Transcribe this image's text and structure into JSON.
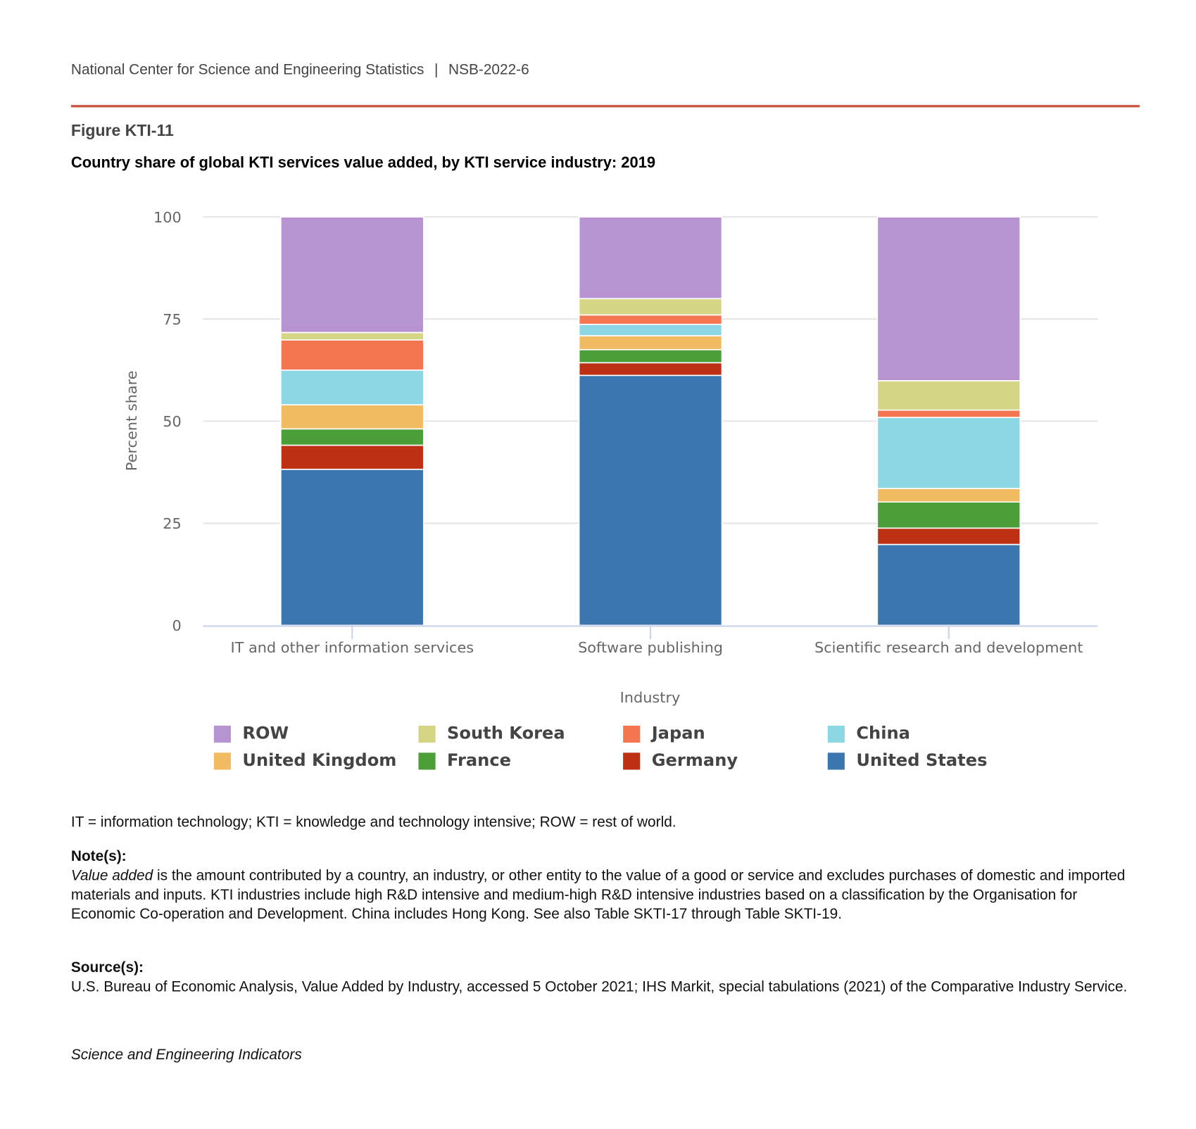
{
  "header": {
    "org": "National Center for Science and Engineering Statistics",
    "sep": "|",
    "report": "NSB-2022-6"
  },
  "figure_label": "Figure KTI-11",
  "colors": {
    "rule": "#c8523a",
    "ROW": "#b893d1",
    "South Korea": "#d4d585",
    "Japan": "#f47650",
    "China": "#8bd7e4",
    "United Kingdom": "#f1ba63",
    "France": "#4b9e38",
    "Germany": "#bd3014",
    "United States": "#3b76af"
  },
  "chart_data": {
    "type": "bar",
    "stacked": true,
    "title": "Country share of global KTI services value added, by KTI service industry: 2019",
    "xlabel": "Industry",
    "ylabel": "Percent share",
    "ylim": [
      0,
      100
    ],
    "yticks": [
      "0",
      "25",
      "50",
      "75",
      "100"
    ],
    "grid": true,
    "legend_position": "bottom",
    "categories": [
      "IT and other information services",
      "Software publishing",
      "Scientific research and development"
    ],
    "series": [
      {
        "name": "United States",
        "values": [
          38.2,
          61.2,
          19.8
        ]
      },
      {
        "name": "Germany",
        "values": [
          5.9,
          3.1,
          4.0
        ]
      },
      {
        "name": "France",
        "values": [
          4.0,
          3.2,
          6.4
        ]
      },
      {
        "name": "United Kingdom",
        "values": [
          5.9,
          3.4,
          3.3
        ]
      },
      {
        "name": "China",
        "values": [
          8.5,
          2.8,
          17.4
        ]
      },
      {
        "name": "Japan",
        "values": [
          7.4,
          2.3,
          1.8
        ]
      },
      {
        "name": "South Korea",
        "values": [
          1.8,
          4.0,
          7.2
        ]
      },
      {
        "name": "ROW",
        "values": [
          28.3,
          20.0,
          40.1
        ]
      }
    ],
    "legend_order": [
      "ROW",
      "South Korea",
      "Japan",
      "China",
      "United Kingdom",
      "France",
      "Germany",
      "United States"
    ]
  },
  "footnotes": {
    "abbrev": "IT = information technology; KTI = knowledge and technology intensive; ROW = rest of world.",
    "note_label": "Note(s):",
    "note_italic": "Value added",
    "note_text": " is the amount contributed by a country, an industry, or other entity to the value of a good or service and excludes purchases of domestic and imported materials and inputs. KTI industries include high R&D intensive and medium-high R&D intensive industries based on a classification by the Organisation for Economic Co-operation and Development. China includes Hong Kong. See also Table SKTI-17 through Table SKTI-19.",
    "source_label": "Source(s):",
    "source_text": "U.S. Bureau of Economic Analysis, Value Added by Industry, accessed 5 October 2021; IHS Markit, special tabulations (2021) of the Comparative Industry Service.",
    "publication": "Science and Engineering Indicators"
  }
}
